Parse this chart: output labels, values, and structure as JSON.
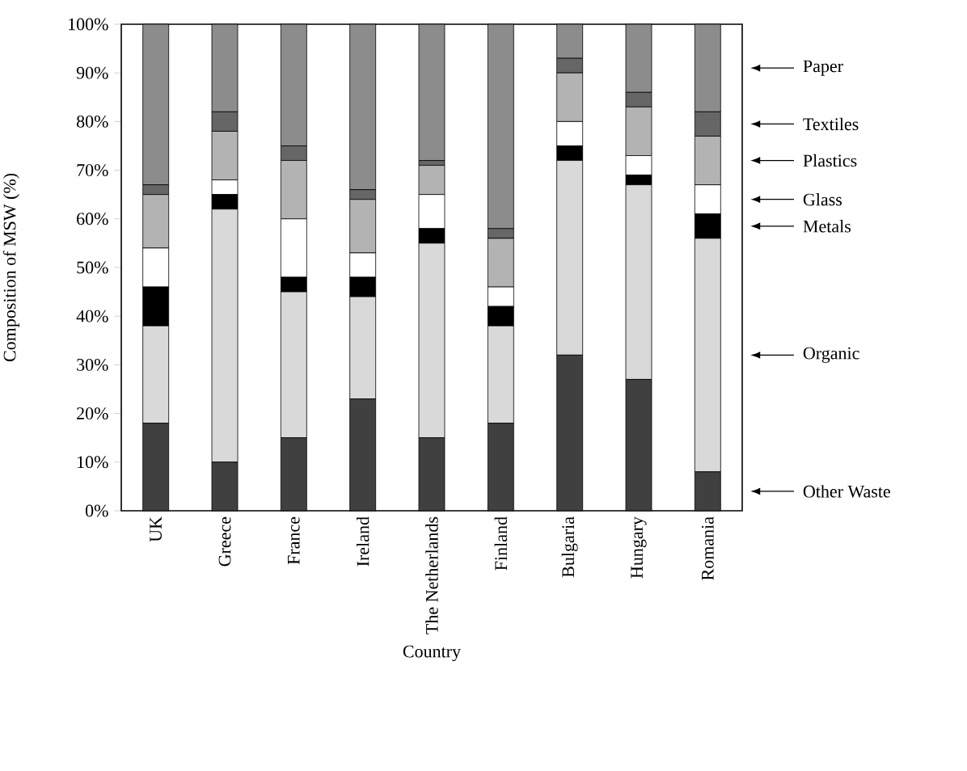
{
  "chart_data": {
    "type": "bar",
    "stacked": true,
    "xlabel": "Country",
    "ylabel": "Composition of MSW (%)",
    "categories": [
      "UK",
      "Greece",
      "France",
      "Ireland",
      "The Netherlands",
      "Finland",
      "Bulgaria",
      "Hungary",
      "Romania"
    ],
    "ylim": [
      0,
      100
    ],
    "legend": "right",
    "yticks": [
      {
        "value": 0,
        "label": "0%"
      },
      {
        "value": 10,
        "label": "10%"
      },
      {
        "value": 20,
        "label": "20%"
      },
      {
        "value": 30,
        "label": "30%"
      },
      {
        "value": 40,
        "label": "40%"
      },
      {
        "value": 50,
        "label": "50%"
      },
      {
        "value": 60,
        "label": "60%"
      },
      {
        "value": 70,
        "label": "70%"
      },
      {
        "value": 80,
        "label": "80%"
      },
      {
        "value": 90,
        "label": "90%"
      },
      {
        "value": 100,
        "label": "100%"
      }
    ],
    "series": [
      {
        "name": "Other Waste",
        "color": "#404040",
        "values": [
          18,
          10,
          15,
          23,
          15,
          18,
          32,
          27,
          8
        ]
      },
      {
        "name": "Organic",
        "color": "#d9d9d9",
        "values": [
          20,
          52,
          30,
          21,
          40,
          20,
          40,
          40,
          48
        ]
      },
      {
        "name": "Metals",
        "color": "#000000",
        "values": [
          8,
          3,
          3,
          4,
          3,
          4,
          3,
          2,
          5
        ]
      },
      {
        "name": "Glass",
        "color": "#ffffff",
        "values": [
          8,
          3,
          12,
          5,
          7,
          4,
          5,
          4,
          6
        ]
      },
      {
        "name": "Plastics",
        "color": "#b3b3b3",
        "values": [
          11,
          10,
          12,
          11,
          6,
          10,
          10,
          10,
          10
        ]
      },
      {
        "name": "Textiles",
        "color": "#666666",
        "values": [
          2,
          4,
          3,
          2,
          1,
          2,
          3,
          3,
          5
        ]
      },
      {
        "name": "Paper",
        "color": "#8c8c8c",
        "values": [
          33,
          18,
          25,
          34,
          28,
          42,
          7,
          14,
          18
        ]
      }
    ]
  }
}
